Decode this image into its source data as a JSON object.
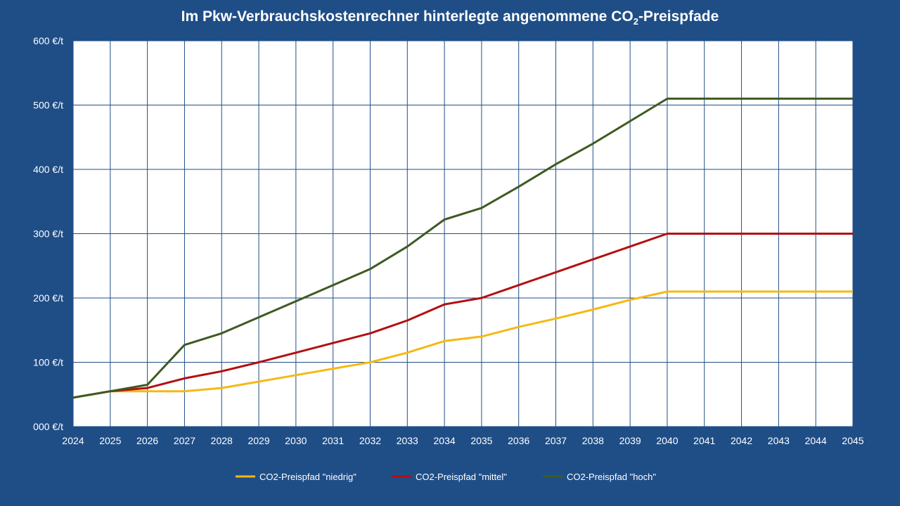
{
  "chart_data": {
    "type": "line",
    "title": {
      "prefix": "Im Pkw-Verbrauchskostenrechner hinterlegte angenommene CO",
      "sub": "2",
      "suffix": "-Preispfade"
    },
    "xlabel": "",
    "ylabel": "",
    "x": [
      2024,
      2025,
      2026,
      2027,
      2028,
      2029,
      2030,
      2031,
      2032,
      2033,
      2034,
      2035,
      2036,
      2037,
      2038,
      2039,
      2040,
      2041,
      2042,
      2043,
      2044,
      2045
    ],
    "ylim": [
      0,
      600
    ],
    "yticks": [
      0,
      100,
      200,
      300,
      400,
      500,
      600
    ],
    "ytick_labels": [
      "000 €/t",
      "100 €/t",
      "200 €/t",
      "300 €/t",
      "400 €/t",
      "500 €/t",
      "600 €/t"
    ],
    "grid": true,
    "legend_position": "bottom",
    "series": [
      {
        "name": "CO2-Preispfad \"niedrig\"",
        "color": "#f5b915",
        "values": [
          45,
          55,
          55,
          55,
          60,
          70,
          80,
          90,
          100,
          115,
          133,
          140,
          155,
          168,
          182,
          197,
          210,
          210,
          210,
          210,
          210,
          210
        ]
      },
      {
        "name": "CO2-Preispfad \"mittel\"",
        "color": "#b30f12",
        "values": [
          45,
          55,
          60,
          75,
          86,
          100,
          115,
          130,
          145,
          165,
          190,
          200,
          220,
          240,
          260,
          280,
          300,
          300,
          300,
          300,
          300,
          300
        ]
      },
      {
        "name": "CO2-Preispfad \"hoch\"",
        "color": "#3f5a22",
        "values": [
          45,
          55,
          65,
          127,
          145,
          170,
          195,
          220,
          245,
          280,
          322,
          340,
          373,
          408,
          440,
          475,
          510,
          510,
          510,
          510,
          510,
          510
        ]
      }
    ]
  }
}
